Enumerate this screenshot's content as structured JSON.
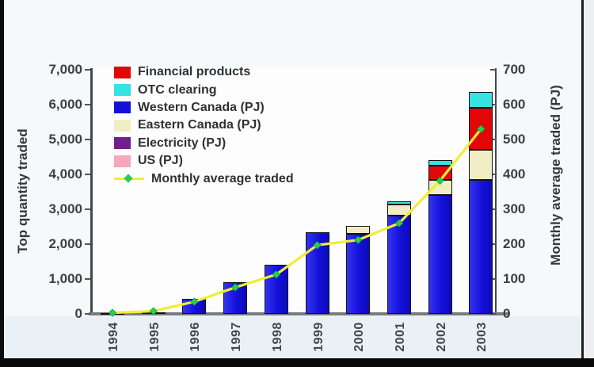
{
  "chart_data": {
    "type": "bar",
    "title": "",
    "grid": false,
    "legend_position": "upper-left",
    "categories": [
      "1994",
      "1995",
      "1996",
      "1997",
      "1998",
      "1999",
      "2000",
      "2001",
      "2002",
      "2003"
    ],
    "stack_series": [
      {
        "name": "Western Canada (PJ)",
        "color": "#1410da",
        "values": [
          30,
          45,
          430,
          900,
          1400,
          2340,
          2300,
          2820,
          3420,
          3850
        ]
      },
      {
        "name": "Eastern Canada (PJ)",
        "color": "#f0edc5",
        "values": [
          0,
          0,
          0,
          0,
          0,
          0,
          230,
          320,
          430,
          850
        ]
      },
      {
        "name": "Financial products",
        "color": "#e20606",
        "values": [
          0,
          0,
          0,
          0,
          0,
          0,
          0,
          0,
          400,
          1200
        ]
      },
      {
        "name": "OTC clearing",
        "color": "#35e4e0",
        "values": [
          0,
          0,
          0,
          0,
          0,
          0,
          0,
          80,
          150,
          460
        ]
      },
      {
        "name": "Electricity (PJ)",
        "color": "#6f2089",
        "values": [
          0,
          0,
          0,
          0,
          0,
          0,
          0,
          0,
          0,
          0
        ]
      },
      {
        "name": "US (PJ)",
        "color": "#f3a8bc",
        "values": [
          0,
          0,
          0,
          0,
          0,
          0,
          0,
          0,
          0,
          0
        ]
      }
    ],
    "line_series": {
      "name": "Monthly average traded",
      "axis": "right",
      "line_color": "#f0ee32",
      "marker_color": "#27d04c",
      "values": [
        3,
        8,
        35,
        76,
        113,
        197,
        212,
        260,
        382,
        530
      ]
    },
    "left_axis": {
      "label": "Top quantity traded",
      "max": 7000,
      "ticks": [
        {
          "label": "0",
          "value": 0
        },
        {
          "label": "1,000",
          "value": 1000
        },
        {
          "label": "2,000",
          "value": 2000
        },
        {
          "label": "3,000",
          "value": 3000
        },
        {
          "label": "4,000",
          "value": 4000
        },
        {
          "label": "5,000",
          "value": 5000
        },
        {
          "label": "6,000",
          "value": 6000
        },
        {
          "label": "7,000",
          "value": 7000
        }
      ]
    },
    "right_axis": {
      "label": "Monthly average traded (PJ)",
      "max": 700,
      "ticks": [
        {
          "label": "0",
          "value": 0
        },
        {
          "label": "100",
          "value": 100
        },
        {
          "label": "200",
          "value": 200
        },
        {
          "label": "300",
          "value": 300
        },
        {
          "label": "400",
          "value": 400
        },
        {
          "label": "500",
          "value": 500
        },
        {
          "label": "600",
          "value": 600
        },
        {
          "label": "700",
          "value": 700
        }
      ]
    },
    "legend": [
      {
        "label": "Financial products",
        "color": "#e20606",
        "marker": "swatch"
      },
      {
        "label": "OTC clearing",
        "color": "#35e4e0",
        "marker": "swatch"
      },
      {
        "label": "Western Canada (PJ)",
        "color": "#1410da",
        "marker": "swatch"
      },
      {
        "label": "Eastern Canada (PJ)",
        "color": "#f0edc5",
        "marker": "swatch"
      },
      {
        "label": "Electricity (PJ)",
        "color": "#6f2089",
        "marker": "swatch"
      },
      {
        "label": "US (PJ)",
        "color": "#f3a8bc",
        "marker": "swatch"
      },
      {
        "label": "Monthly average traded",
        "marker": "line"
      }
    ]
  }
}
